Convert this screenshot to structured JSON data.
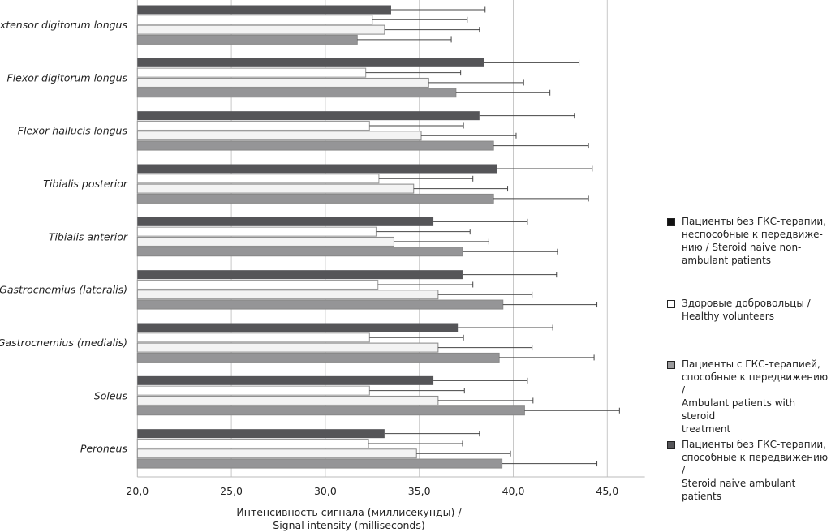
{
  "chart_data": {
    "type": "bar",
    "orientation": "horizontal",
    "categories": [
      "Extensor digitorum longus",
      "Flexor digitorum longus",
      "Flexor hallucis longus",
      "Tibialis posterior",
      "Tibialis anterior",
      "Gastrocnemius (lateralis)",
      "Gastrocnemius (medialis)",
      "Soleus",
      "Peroneus"
    ],
    "xlabel": [
      "Интенсивность сигнала (миллисекунды) /",
      "Signal intensity (milliseconds)"
    ],
    "ylabel": "",
    "xlim": [
      20,
      47
    ],
    "xticks": [
      "20,0",
      "25,0",
      "30,0",
      "35,0",
      "40,0",
      "45,0"
    ],
    "xtick_values": [
      20,
      25,
      30,
      35,
      40,
      45
    ],
    "grid": "vertical",
    "legend_position": "right",
    "error_bars": "positive only",
    "series": [
      {
        "name": "Пациенты без ГКС-терапии, способные к передвижению / Steroid naive ambulant patients",
        "legend_color": "#555558",
        "bar_color": "#555558",
        "values": [
          33.5,
          38.45,
          38.2,
          39.15,
          35.75,
          37.3,
          37.05,
          35.75,
          33.15
        ],
        "errors": [
          5.0,
          5.05,
          5.05,
          5.05,
          5.0,
          5.0,
          5.05,
          5.0,
          5.05
        ]
      },
      {
        "name": "Пациенты без ГКС-терапии, неспособные к передвижению / Steroid naive non-ambulant patients",
        "legend_color": "#111111",
        "bar_color": "#ffffff",
        "values": [
          32.5,
          32.15,
          32.35,
          32.85,
          32.7,
          32.8,
          32.35,
          32.35,
          32.3
        ],
        "errors": [
          5.05,
          5.05,
          5.0,
          5.0,
          5.0,
          5.05,
          5.0,
          5.05,
          5.0
        ]
      },
      {
        "name": "Здоровые добровольцы / Healthy volunteers",
        "legend_color": "#ffffff",
        "bar_color": "#f3f3f3",
        "values": [
          33.15,
          35.5,
          35.1,
          34.7,
          33.65,
          36.0,
          36.0,
          36.0,
          34.85
        ],
        "errors": [
          5.05,
          5.05,
          5.05,
          5.0,
          5.05,
          5.0,
          5.0,
          5.05,
          5.0
        ]
      },
      {
        "name": "Пациенты с ГКС-терапией, способные к передвижению / Ambulant patients with steroid treatment",
        "legend_color": "#9a9a9c",
        "bar_color": "#959597",
        "values": [
          31.7,
          36.95,
          38.95,
          38.95,
          37.3,
          39.45,
          39.25,
          40.6,
          39.4
        ],
        "errors": [
          5.0,
          5.0,
          5.05,
          5.05,
          5.05,
          5.0,
          5.05,
          5.05,
          5.05
        ]
      }
    ]
  },
  "legend": [
    {
      "lines": [
        "Пациенты без ГКС-терапии,",
        "неспособные к передвиже-",
        "нию / Steroid naive non-",
        "ambulant patients"
      ],
      "color": "#111111"
    },
    {
      "lines": [
        "Здоровые добровольцы /",
        "Healthy volunteers"
      ],
      "color": "#ffffff"
    },
    {
      "lines": [
        "Пациенты с ГКС-терапией,",
        "способные к передвижению /",
        "Ambulant patients with steroid",
        "treatment"
      ],
      "color": "#9a9a9c"
    },
    {
      "lines": [
        "Пациенты без ГКС-терапии,",
        "способные к передвижению /",
        "Steroid naive ambulant patients"
      ],
      "color": "#555558"
    }
  ]
}
